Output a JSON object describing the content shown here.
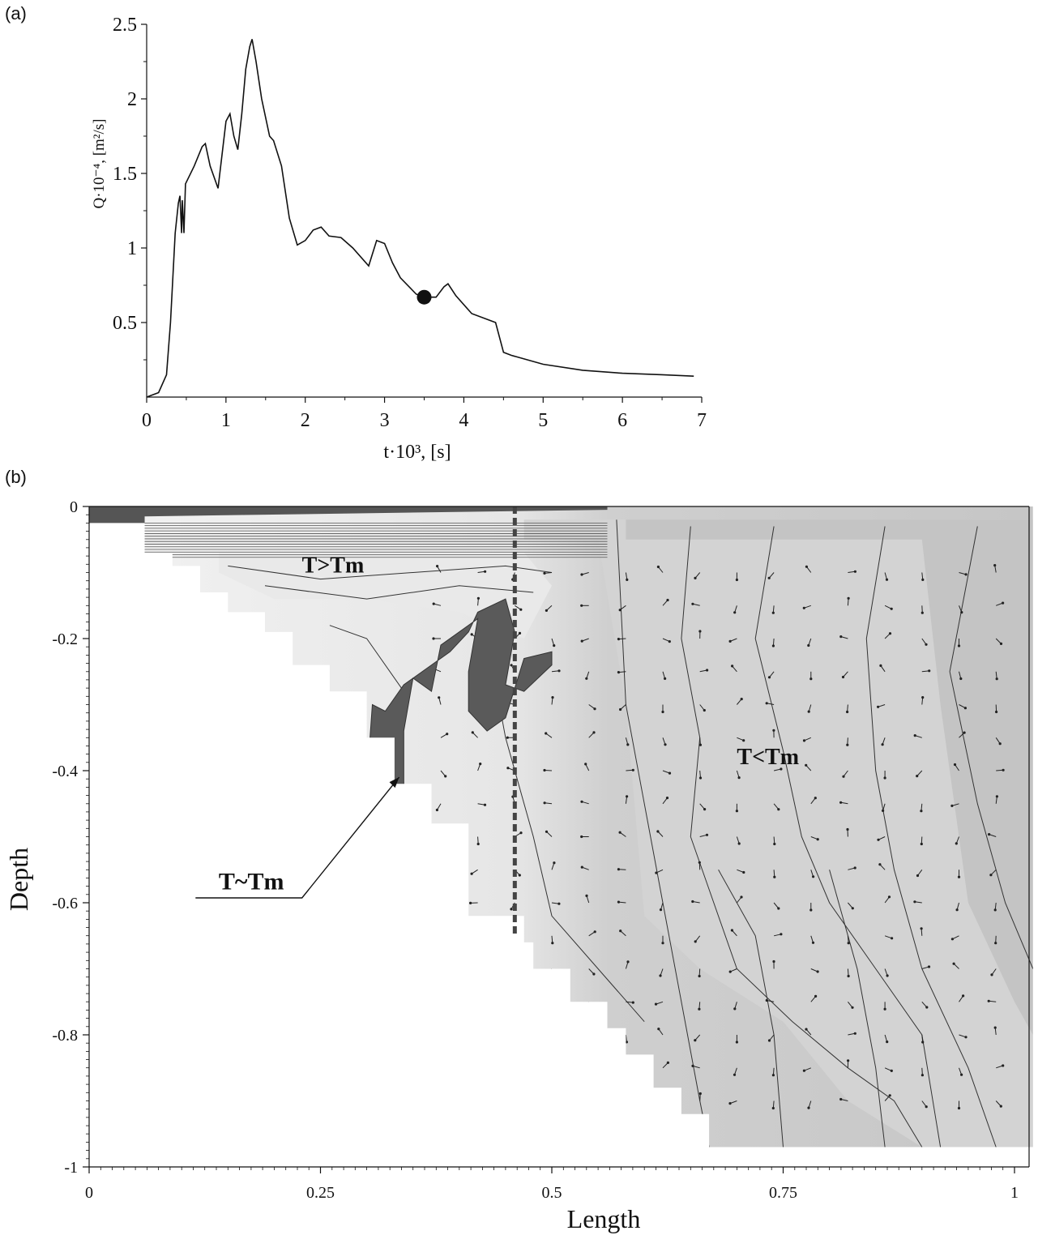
{
  "panels": {
    "a_label": "(a)",
    "b_label": "(b)"
  },
  "chart_data": [
    {
      "type": "line",
      "xlim": [
        0,
        7
      ],
      "ylim": [
        0,
        2.5
      ],
      "xticks": [
        "0",
        "1",
        "2",
        "3",
        "4",
        "5",
        "6",
        "7"
      ],
      "yticks": [
        "0.5",
        "1",
        "1.5",
        "2",
        "2.5"
      ],
      "xlabel": "t·10³, [s]",
      "ylabel": "Q·10⁻⁴, [m²/s]",
      "grid": false,
      "series": [
        {
          "x": [
            0,
            0.15,
            0.25,
            0.3,
            0.33,
            0.36,
            0.4,
            0.42,
            0.44,
            0.45,
            0.47,
            0.49,
            0.6,
            0.7,
            0.74,
            0.8,
            0.9,
            1.0,
            1.05,
            1.1,
            1.15,
            1.2,
            1.25,
            1.3,
            1.33,
            1.38,
            1.45,
            1.55,
            1.6,
            1.7,
            1.8,
            1.9,
            2.0,
            2.1,
            2.2,
            2.3,
            2.45,
            2.6,
            2.8,
            2.9,
            3.0,
            3.1,
            3.2,
            3.4,
            3.5,
            3.65,
            3.75,
            3.8,
            3.9,
            4.1,
            4.4,
            4.5,
            4.6,
            5.0,
            5.5,
            6.0,
            6.5,
            6.9
          ],
          "y": [
            0,
            0.03,
            0.15,
            0.5,
            0.8,
            1.1,
            1.3,
            1.35,
            1.1,
            1.32,
            1.1,
            1.43,
            1.55,
            1.68,
            1.7,
            1.55,
            1.4,
            1.85,
            1.9,
            1.75,
            1.66,
            1.9,
            2.2,
            2.35,
            2.4,
            2.25,
            2.0,
            1.75,
            1.72,
            1.55,
            1.2,
            1.02,
            1.05,
            1.12,
            1.14,
            1.08,
            1.07,
            1.0,
            0.88,
            1.05,
            1.03,
            0.9,
            0.8,
            0.69,
            0.67,
            0.67,
            0.74,
            0.76,
            0.68,
            0.56,
            0.5,
            0.3,
            0.28,
            0.22,
            0.18,
            0.16,
            0.15,
            0.14
          ]
        }
      ],
      "markers": [
        {
          "x": 3.5,
          "y": 0.67
        }
      ]
    },
    {
      "type": "heatmap",
      "xlim": [
        0,
        1
      ],
      "ylim": [
        -1,
        0
      ],
      "xticks": [
        "0",
        "0.25",
        "0.5",
        "0.75",
        "1"
      ],
      "yticks": [
        "0",
        "-0.2",
        "-0.4",
        "-0.6",
        "-0.8",
        "-1"
      ],
      "xlabel": "Length",
      "ylabel": "Depth",
      "grid": false,
      "annotations": [
        {
          "text": "T>Tm",
          "x": 0.23,
          "y": -0.1
        },
        {
          "text": "T<Tm",
          "x": 0.7,
          "y": -0.39
        },
        {
          "text": "T~Tm",
          "x": 0.14,
          "y": -0.58
        }
      ],
      "boundary_depth": [
        [
          0.06,
          -0.02
        ],
        [
          0.06,
          -0.07
        ],
        [
          0.09,
          -0.07
        ],
        [
          0.09,
          -0.09
        ],
        [
          0.12,
          -0.09
        ],
        [
          0.12,
          -0.13
        ],
        [
          0.15,
          -0.13
        ],
        [
          0.15,
          -0.16
        ],
        [
          0.19,
          -0.16
        ],
        [
          0.19,
          -0.19
        ],
        [
          0.22,
          -0.19
        ],
        [
          0.22,
          -0.24
        ],
        [
          0.26,
          -0.24
        ],
        [
          0.26,
          -0.28
        ],
        [
          0.3,
          -0.28
        ],
        [
          0.3,
          -0.35
        ],
        [
          0.33,
          -0.35
        ],
        [
          0.33,
          -0.42
        ],
        [
          0.37,
          -0.42
        ],
        [
          0.37,
          -0.48
        ],
        [
          0.41,
          -0.48
        ],
        [
          0.41,
          -0.62
        ],
        [
          0.47,
          -0.62
        ],
        [
          0.47,
          -0.66
        ],
        [
          0.48,
          -0.66
        ],
        [
          0.48,
          -0.7
        ],
        [
          0.52,
          -0.7
        ],
        [
          0.52,
          -0.75
        ],
        [
          0.56,
          -0.75
        ],
        [
          0.56,
          -0.79
        ],
        [
          0.58,
          -0.79
        ],
        [
          0.58,
          -0.83
        ],
        [
          0.61,
          -0.83
        ],
        [
          0.61,
          -0.88
        ],
        [
          0.64,
          -0.88
        ],
        [
          0.64,
          -0.92
        ],
        [
          0.67,
          -0.92
        ],
        [
          0.67,
          -0.97
        ],
        [
          1.02,
          -0.97
        ]
      ],
      "tm_region": [
        [
          0.306,
          -0.3
        ],
        [
          0.32,
          -0.31
        ],
        [
          0.34,
          -0.27
        ],
        [
          0.37,
          -0.24
        ],
        [
          0.39,
          -0.22
        ],
        [
          0.41,
          -0.19
        ],
        [
          0.42,
          -0.16
        ],
        [
          0.45,
          -0.14
        ],
        [
          0.46,
          -0.19
        ],
        [
          0.45,
          -0.27
        ],
        [
          0.47,
          -0.28
        ],
        [
          0.5,
          -0.24
        ],
        [
          0.5,
          -0.22
        ],
        [
          0.47,
          -0.23
        ],
        [
          0.45,
          -0.32
        ],
        [
          0.43,
          -0.34
        ],
        [
          0.41,
          -0.31
        ],
        [
          0.41,
          -0.25
        ],
        [
          0.42,
          -0.17
        ],
        [
          0.38,
          -0.21
        ],
        [
          0.37,
          -0.28
        ],
        [
          0.35,
          -0.26
        ],
        [
          0.34,
          -0.34
        ],
        [
          0.34,
          -0.42
        ],
        [
          0.34,
          -0.48
        ],
        [
          0.32,
          -0.48
        ],
        [
          0.32,
          -0.46
        ],
        [
          0.3,
          -0.46
        ],
        [
          0.3,
          -0.42
        ],
        [
          0.306,
          -0.3
        ]
      ],
      "dashed_line_x": 0.46
    }
  ]
}
